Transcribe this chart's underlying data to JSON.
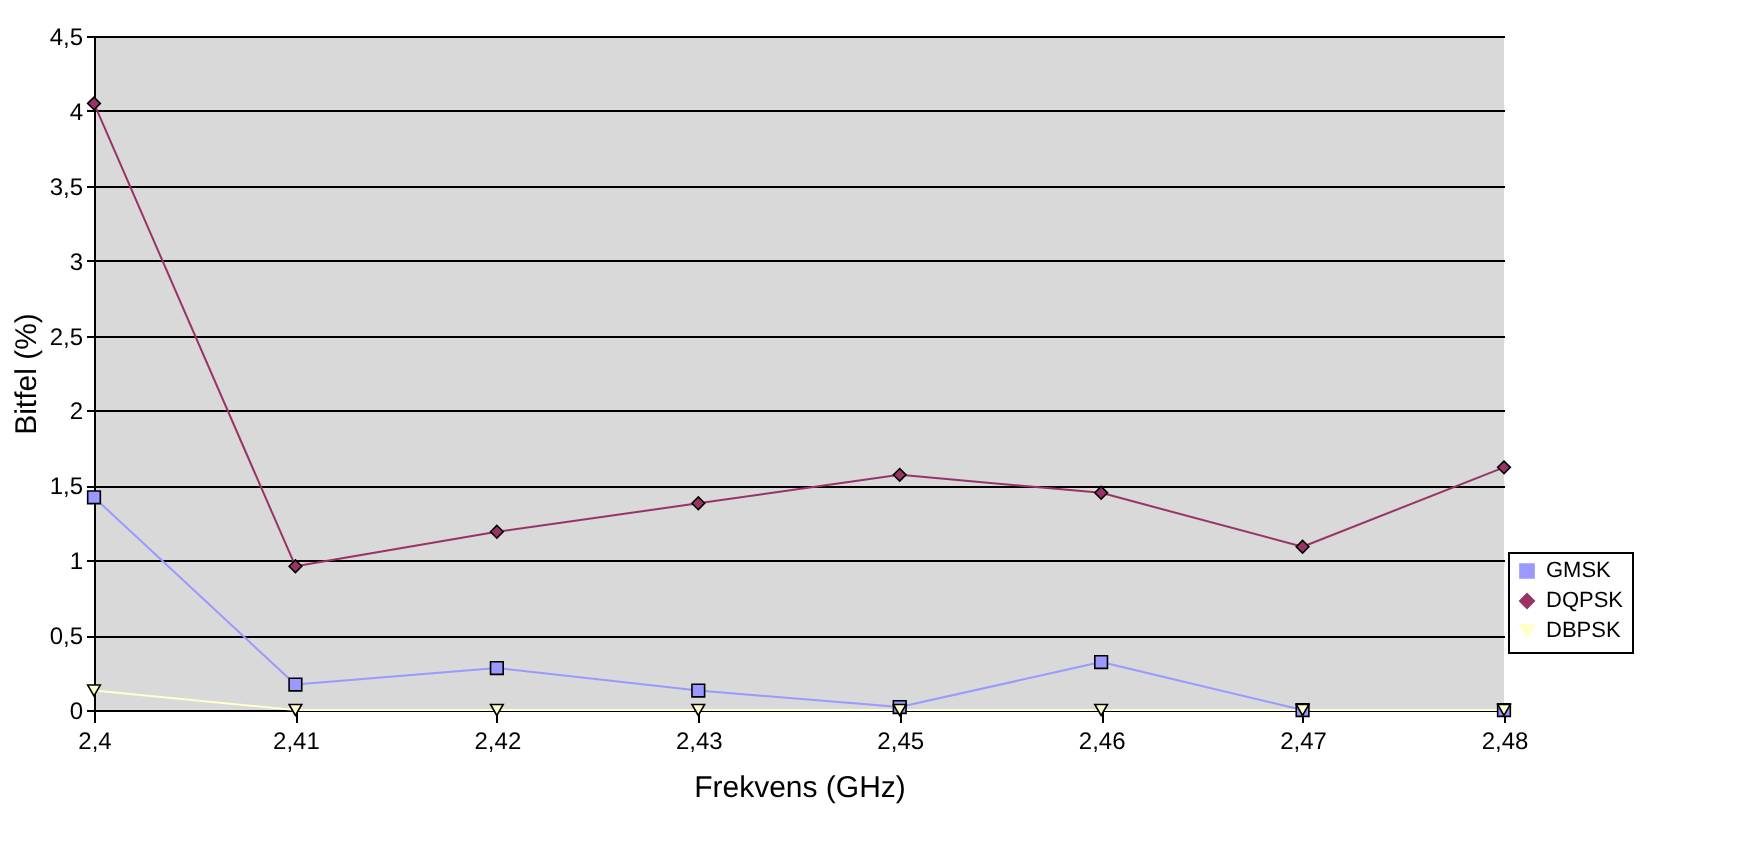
{
  "chart_data": {
    "type": "line",
    "xlabel": "Frekvens (GHz)",
    "ylabel": "Bitfel (%)",
    "categories": [
      "2,4",
      "2,41",
      "2,42",
      "2,43",
      "2,45",
      "2,46",
      "2,47",
      "2,48"
    ],
    "series": [
      {
        "name": "GMSK",
        "color": "#9999ff",
        "marker": "square",
        "values": [
          1.42,
          0.17,
          0.28,
          0.13,
          0.02,
          0.32,
          0,
          0
        ]
      },
      {
        "name": "DQPSK",
        "color": "#993366",
        "marker": "diamond",
        "values": [
          4.05,
          0.96,
          1.19,
          1.38,
          1.57,
          1.45,
          1.09,
          1.62
        ]
      },
      {
        "name": "DBPSK",
        "color": "#ffffcc",
        "marker": "triangle-down",
        "values": [
          0.13,
          0,
          0,
          0,
          0,
          0,
          0,
          0
        ]
      }
    ],
    "ylim": [
      0,
      4.5
    ],
    "yticks": [
      0,
      {
        "value": 0.5,
        "label": "0,5"
      },
      1,
      {
        "value": 1.5,
        "label": "1,5"
      },
      2,
      {
        "value": 2.5,
        "label": "2,5"
      },
      3,
      {
        "value": 3.5,
        "label": "3,5"
      },
      4,
      {
        "value": 4.5,
        "label": "4,5"
      }
    ],
    "grid": "y",
    "legend": "right",
    "line_style": "solid"
  }
}
